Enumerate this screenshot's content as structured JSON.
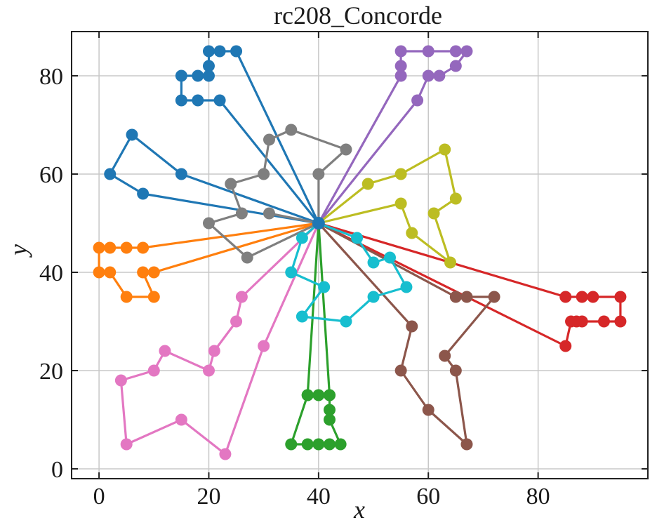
{
  "chart_data": {
    "type": "line",
    "title": "rc208_Concorde",
    "xlabel": "x",
    "ylabel": "y",
    "xlim": [
      -5,
      100
    ],
    "ylim": [
      -2,
      89
    ],
    "xticks": [
      0,
      20,
      40,
      60,
      80
    ],
    "yticks": [
      0,
      20,
      40,
      60,
      80
    ],
    "grid": true,
    "depot": [
      40,
      50
    ],
    "depot_color": "#1f77b4",
    "series": [
      {
        "color": "#1f77b4",
        "points": [
          [
            40,
            50
          ],
          [
            25,
            85
          ],
          [
            22,
            85
          ],
          [
            20,
            85
          ],
          [
            20,
            82
          ],
          [
            20,
            80
          ],
          [
            18,
            80
          ],
          [
            15,
            80
          ],
          [
            15,
            75
          ],
          [
            18,
            75
          ],
          [
            22,
            75
          ],
          [
            40,
            50
          ],
          [
            15,
            60
          ],
          [
            6,
            68
          ],
          [
            2,
            60
          ],
          [
            8,
            56
          ],
          [
            40,
            50
          ]
        ]
      },
      {
        "color": "#ff7f0e",
        "points": [
          [
            40,
            50
          ],
          [
            8,
            45
          ],
          [
            5,
            45
          ],
          [
            2,
            45
          ],
          [
            0,
            45
          ],
          [
            0,
            40
          ],
          [
            2,
            40
          ],
          [
            5,
            35
          ],
          [
            10,
            35
          ],
          [
            8,
            40
          ],
          [
            10,
            40
          ],
          [
            40,
            50
          ]
        ]
      },
      {
        "color": "#2ca02c",
        "points": [
          [
            40,
            50
          ],
          [
            38,
            15
          ],
          [
            40,
            15
          ],
          [
            42,
            15
          ],
          [
            42,
            12
          ],
          [
            42,
            10
          ],
          [
            44,
            5
          ],
          [
            42,
            5
          ],
          [
            40,
            5
          ],
          [
            38,
            5
          ],
          [
            35,
            5
          ],
          [
            38,
            15
          ],
          [
            40,
            50
          ],
          [
            42,
            15
          ],
          [
            40,
            50
          ]
        ]
      },
      {
        "color": "#d62728",
        "points": [
          [
            40,
            50
          ],
          [
            85,
            35
          ],
          [
            88,
            35
          ],
          [
            90,
            35
          ],
          [
            95,
            35
          ],
          [
            95,
            30
          ],
          [
            92,
            30
          ],
          [
            88,
            30
          ],
          [
            87,
            30
          ],
          [
            86,
            30
          ],
          [
            85,
            25
          ],
          [
            40,
            50
          ]
        ]
      },
      {
        "color": "#9467bd",
        "points": [
          [
            40,
            50
          ],
          [
            55,
            80
          ],
          [
            55,
            82
          ],
          [
            55,
            85
          ],
          [
            60,
            85
          ],
          [
            65,
            85
          ],
          [
            67,
            85
          ],
          [
            65,
            82
          ],
          [
            62,
            80
          ],
          [
            60,
            80
          ],
          [
            58,
            75
          ],
          [
            40,
            50
          ]
        ]
      },
      {
        "color": "#8c564b",
        "points": [
          [
            40,
            50
          ],
          [
            57,
            29
          ],
          [
            55,
            20
          ],
          [
            60,
            12
          ],
          [
            67,
            5
          ],
          [
            65,
            20
          ],
          [
            63,
            23
          ],
          [
            72,
            35
          ],
          [
            67,
            35
          ],
          [
            65,
            35
          ],
          [
            40,
            50
          ]
        ]
      },
      {
        "color": "#e377c2",
        "points": [
          [
            40,
            50
          ],
          [
            30,
            25
          ],
          [
            23,
            3
          ],
          [
            15,
            10
          ],
          [
            5,
            5
          ],
          [
            4,
            18
          ],
          [
            10,
            20
          ],
          [
            12,
            24
          ],
          [
            20,
            20
          ],
          [
            21,
            24
          ],
          [
            25,
            30
          ],
          [
            26,
            35
          ],
          [
            40,
            50
          ]
        ]
      },
      {
        "color": "#7f7f7f",
        "points": [
          [
            40,
            50
          ],
          [
            27,
            43
          ],
          [
            20,
            50
          ],
          [
            26,
            52
          ],
          [
            24,
            58
          ],
          [
            30,
            60
          ],
          [
            31,
            67
          ],
          [
            35,
            69
          ],
          [
            45,
            65
          ],
          [
            40,
            60
          ],
          [
            40,
            50
          ],
          [
            31,
            52
          ],
          [
            40,
            50
          ]
        ]
      },
      {
        "color": "#bcbd22",
        "points": [
          [
            40,
            50
          ],
          [
            49,
            58
          ],
          [
            55,
            60
          ],
          [
            63,
            65
          ],
          [
            65,
            55
          ],
          [
            61,
            52
          ],
          [
            64,
            42
          ],
          [
            57,
            48
          ],
          [
            55,
            54
          ],
          [
            40,
            50
          ]
        ]
      },
      {
        "color": "#17becf",
        "points": [
          [
            40,
            50
          ],
          [
            37,
            47
          ],
          [
            35,
            40
          ],
          [
            41,
            37
          ],
          [
            37,
            31
          ],
          [
            45,
            30
          ],
          [
            50,
            35
          ],
          [
            56,
            37
          ],
          [
            53,
            43
          ],
          [
            50,
            42
          ],
          [
            47,
            47
          ],
          [
            40,
            50
          ]
        ]
      }
    ]
  }
}
